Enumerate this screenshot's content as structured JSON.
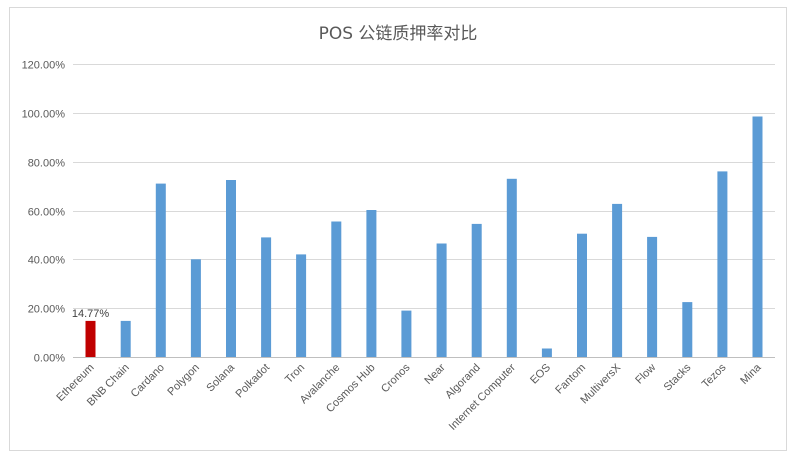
{
  "chart_data": {
    "type": "bar",
    "title": "POS 公链质押率对比",
    "xlabel": "",
    "ylabel": "",
    "categories": [
      "Ethereum",
      "BNB Chain",
      "Cardano",
      "Polygon",
      "Solana",
      "Polkadot",
      "Tron",
      "Avalanche",
      "Cosmos Hub",
      "Cronos",
      "Near",
      "Algorand",
      "Internet Computer",
      "EOS",
      "Fantom",
      "MultiversX",
      "Flow",
      "Stacks",
      "Tezos",
      "Mina"
    ],
    "values": [
      14.77,
      14.8,
      71.0,
      40.0,
      72.5,
      49.0,
      42.0,
      55.5,
      60.2,
      19.0,
      46.5,
      54.5,
      73.0,
      3.5,
      50.5,
      62.7,
      49.2,
      22.5,
      76.0,
      98.5
    ],
    "ylim": [
      0,
      120
    ],
    "yticks": [
      "0.00%",
      "20.00%",
      "40.00%",
      "60.00%",
      "80.00%",
      "100.00%",
      "120.00%"
    ],
    "ytick_values": [
      0,
      20,
      40,
      60,
      80,
      100,
      120
    ],
    "grid": true,
    "legend": "none",
    "highlight_index": 0,
    "data_labels": [
      {
        "index": 0,
        "text": "14.77%"
      }
    ],
    "colors": {
      "bar": "#5b9bd5",
      "highlight": "#c00000",
      "grid": "#d9d9d9",
      "text": "#595959"
    }
  }
}
